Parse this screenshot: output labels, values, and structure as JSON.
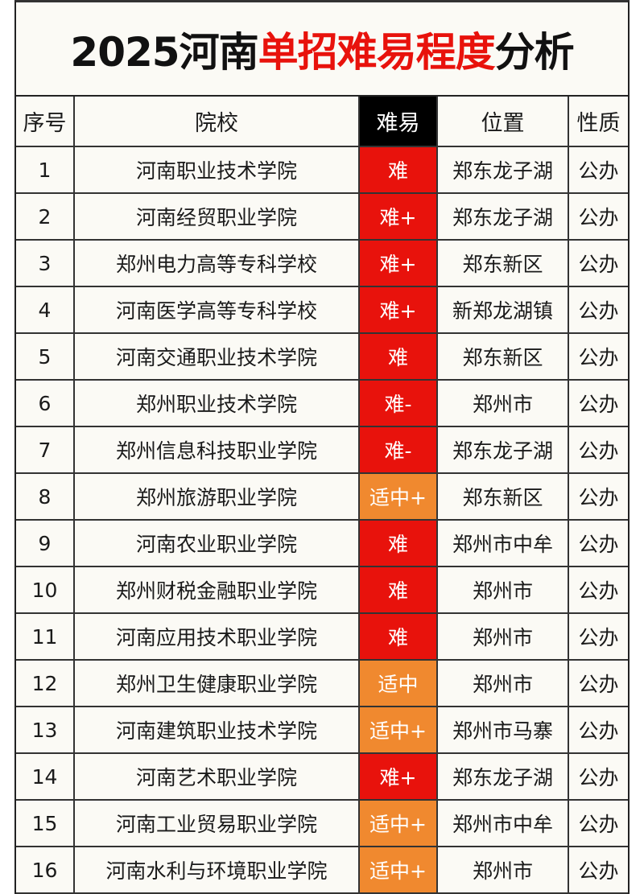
{
  "title": {
    "prefix": "2025河南",
    "highlight": "单招难易程度",
    "suffix": "分析"
  },
  "colors": {
    "hard": "#e8120c",
    "medium": "#f0892f",
    "header_dark": "#000000"
  },
  "headers": [
    "序号",
    "院校",
    "难易",
    "位置",
    "性质"
  ],
  "rows": [
    {
      "no": "1",
      "school": "河南职业技术学院",
      "difficulty": "难",
      "location": "郑东龙子湖",
      "nature": "公办"
    },
    {
      "no": "2",
      "school": "河南经贸职业学院",
      "difficulty": "难+",
      "location": "郑东龙子湖",
      "nature": "公办"
    },
    {
      "no": "3",
      "school": "郑州电力高等专科学校",
      "difficulty": "难+",
      "location": "郑东新区",
      "nature": "公办"
    },
    {
      "no": "4",
      "school": "河南医学高等专科学校",
      "difficulty": "难+",
      "location": "新郑龙湖镇",
      "nature": "公办"
    },
    {
      "no": "5",
      "school": "河南交通职业技术学院",
      "difficulty": "难",
      "location": "郑东新区",
      "nature": "公办"
    },
    {
      "no": "6",
      "school": "郑州职业技术学院",
      "difficulty": "难-",
      "location": "郑州市",
      "nature": "公办"
    },
    {
      "no": "7",
      "school": "郑州信息科技职业学院",
      "difficulty": "难-",
      "location": "郑东龙子湖",
      "nature": "公办"
    },
    {
      "no": "8",
      "school": "郑州旅游职业学院",
      "difficulty": "适中+",
      "location": "郑东新区",
      "nature": "公办"
    },
    {
      "no": "9",
      "school": "河南农业职业学院",
      "difficulty": "难",
      "location": "郑州市中牟",
      "nature": "公办"
    },
    {
      "no": "10",
      "school": "郑州财税金融职业学院",
      "difficulty": "难",
      "location": "郑州市",
      "nature": "公办"
    },
    {
      "no": "11",
      "school": "河南应用技术职业学院",
      "difficulty": "难",
      "location": "郑州市",
      "nature": "公办"
    },
    {
      "no": "12",
      "school": "郑州卫生健康职业学院",
      "difficulty": "适中",
      "location": "郑州市",
      "nature": "公办"
    },
    {
      "no": "13",
      "school": "河南建筑职业技术学院",
      "difficulty": "适中+",
      "location": "郑州市马寨",
      "nature": "公办"
    },
    {
      "no": "14",
      "school": "河南艺术职业学院",
      "difficulty": "难+",
      "location": "郑东龙子湖",
      "nature": "公办"
    },
    {
      "no": "15",
      "school": "河南工业贸易职业学院",
      "difficulty": "适中+",
      "location": "郑州市中牟",
      "nature": "公办"
    },
    {
      "no": "16",
      "school": "河南水利与环境职业学院",
      "difficulty": "适中+",
      "location": "郑州市",
      "nature": "公办"
    }
  ]
}
